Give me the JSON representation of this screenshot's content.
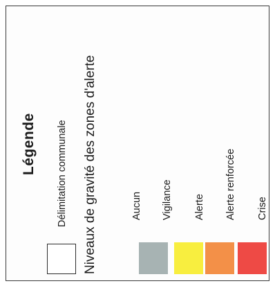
{
  "legend": {
    "title": "Légende",
    "commune": {
      "label": "Délimitation communale"
    },
    "levels_title": "Niveaux de gravité des zones d'alerte",
    "levels": [
      {
        "label": "Aucun",
        "color": ""
      },
      {
        "label": "Vigilance",
        "color": "#a7b3b3"
      },
      {
        "label": "Alerte",
        "color": "#f8ee3f"
      },
      {
        "label": "Alerte renforcée",
        "color": "#f39048"
      },
      {
        "label": "Crise",
        "color": "#ee4a45"
      }
    ]
  }
}
